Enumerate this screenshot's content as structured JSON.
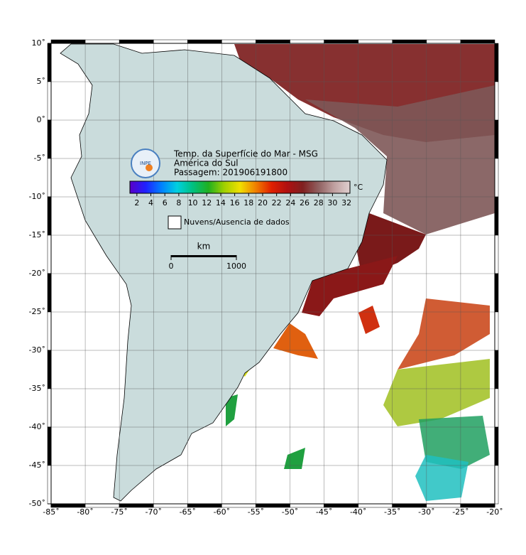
{
  "map": {
    "title": "Temp. da Superfície do Mar - MSG",
    "subtitle": "América do Sul",
    "pass": "Passagem: 201906191800",
    "logo": "INPE",
    "xlim": [
      -85,
      -20
    ],
    "ylim": [
      -50,
      10
    ],
    "xticks": [
      {
        "value": -85,
        "label": "-85˚"
      },
      {
        "value": -80,
        "label": "-80˚"
      },
      {
        "value": -75,
        "label": "-75˚"
      },
      {
        "value": -70,
        "label": "-70˚"
      },
      {
        "value": -65,
        "label": "-65˚"
      },
      {
        "value": -60,
        "label": "-60˚"
      },
      {
        "value": -55,
        "label": "-55˚"
      },
      {
        "value": -50,
        "label": "-50˚"
      },
      {
        "value": -45,
        "label": "-45˚"
      },
      {
        "value": -40,
        "label": "-40˚"
      },
      {
        "value": -35,
        "label": "-35˚"
      },
      {
        "value": -30,
        "label": "-30˚"
      },
      {
        "value": -25,
        "label": "-25˚"
      },
      {
        "value": -20,
        "label": "-20˚"
      }
    ],
    "yticks": [
      {
        "value": 10,
        "label": "10˚"
      },
      {
        "value": 5,
        "label": "5˚"
      },
      {
        "value": 0,
        "label": "0˚"
      },
      {
        "value": -5,
        "label": "-5˚"
      },
      {
        "value": -10,
        "label": "-10˚"
      },
      {
        "value": -15,
        "label": "-15˚"
      },
      {
        "value": -20,
        "label": "-20˚"
      },
      {
        "value": -25,
        "label": "-25˚"
      },
      {
        "value": -30,
        "label": "-30˚"
      },
      {
        "value": -35,
        "label": "-35˚"
      },
      {
        "value": -40,
        "label": "-40˚"
      },
      {
        "value": -45,
        "label": "-45˚"
      },
      {
        "value": -50,
        "label": "-50˚"
      }
    ],
    "grid": true,
    "colorbar": {
      "unit": "°C",
      "clim": [
        1,
        32.5
      ],
      "ticks": [
        2,
        4,
        6,
        8,
        10,
        12,
        14,
        16,
        18,
        20,
        22,
        24,
        26,
        28,
        30,
        32
      ],
      "colors": [
        "#5a00c8",
        "#2020ff",
        "#0080ff",
        "#00d0e0",
        "#00c080",
        "#20b020",
        "#a0d000",
        "#f0e000",
        "#f08000",
        "#e02000",
        "#b01010",
        "#802020",
        "#906060",
        "#c0a0a0",
        "#e0d0d0"
      ]
    },
    "legend": "Nuvens/Ausencia de dados",
    "scale": {
      "unit": "km",
      "ticks": [
        0,
        1000
      ]
    }
  }
}
